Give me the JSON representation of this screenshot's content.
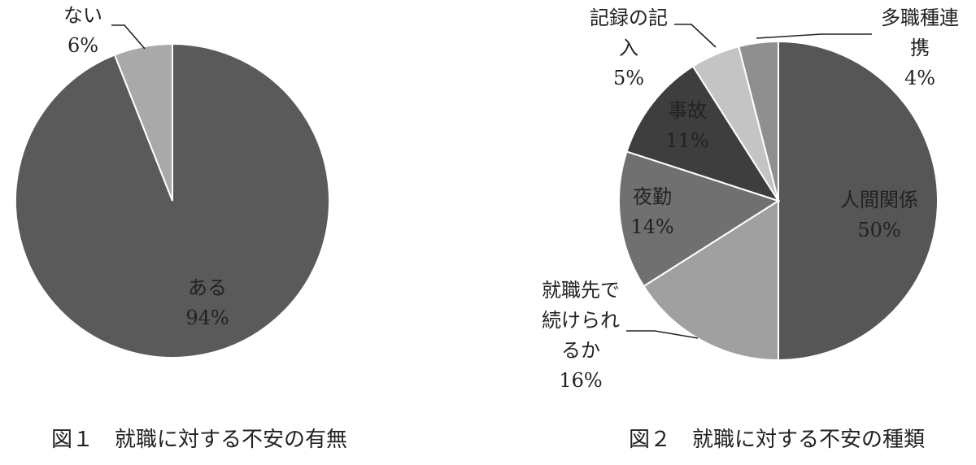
{
  "chart_data": [
    {
      "type": "pie",
      "caption": "図１　就職に対する不安の有無",
      "slices": [
        {
          "label_lines": [
            "ある"
          ],
          "value": 94,
          "value_label": "94%",
          "color": "#5a5a5a"
        },
        {
          "label_lines": [
            "ない"
          ],
          "value": 6,
          "value_label": "6%",
          "color": "#a9a9a9"
        }
      ]
    },
    {
      "type": "pie",
      "caption": "図２　就職に対する不安の種類",
      "slices": [
        {
          "label_lines": [
            "人間関係"
          ],
          "value": 50,
          "value_label": "50%",
          "color": "#565656"
        },
        {
          "label_lines": [
            "就職先で",
            "続けられ",
            "るか"
          ],
          "value": 16,
          "value_label": "16%",
          "color": "#a0a0a0"
        },
        {
          "label_lines": [
            "夜勤"
          ],
          "value": 14,
          "value_label": "14%",
          "color": "#707070"
        },
        {
          "label_lines": [
            "事故"
          ],
          "value": 11,
          "value_label": "11%",
          "color": "#3e3e3e"
        },
        {
          "label_lines": [
            "記録の記",
            "入"
          ],
          "value": 5,
          "value_label": "5%",
          "color": "#c4c4c4"
        },
        {
          "label_lines": [
            "多職種連",
            "携"
          ],
          "value": 4,
          "value_label": "4%",
          "color": "#8f8f8f"
        }
      ]
    }
  ]
}
